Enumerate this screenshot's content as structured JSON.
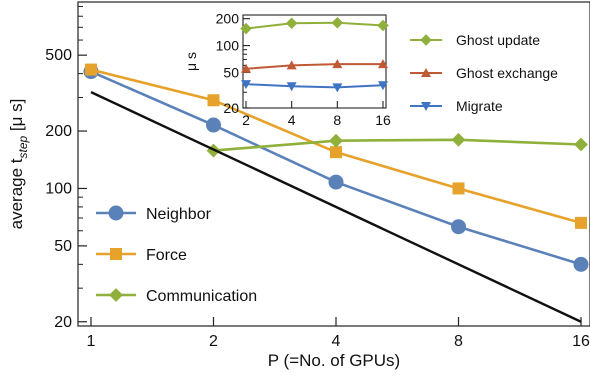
{
  "chart_data": [
    {
      "type": "line",
      "scale": {
        "x": "log2",
        "y": "log"
      },
      "xlim": [
        1,
        16
      ],
      "ylim": [
        19,
        950
      ],
      "xticks": [
        1,
        2,
        4,
        8,
        16
      ],
      "yticks": [
        20,
        50,
        100,
        200,
        500
      ],
      "xlabel": "P (=No. of GPUs)",
      "ylabel": {
        "main": "average t",
        "sub": "step",
        "unit": " [μ s]"
      },
      "grid": false,
      "legend_position": "bottom-left",
      "series": [
        {
          "name": "Neighbor",
          "color": "#5b82b8",
          "marker": "circle",
          "x": [
            1,
            2,
            4,
            8,
            16
          ],
          "y": [
            410,
            215,
            108,
            63,
            40
          ]
        },
        {
          "name": "Force",
          "color": "#e6a22a",
          "marker": "square",
          "x": [
            1,
            2,
            4,
            8,
            16
          ],
          "y": [
            420,
            290,
            155,
            100,
            66
          ]
        },
        {
          "name": "Communication",
          "color": "#8fb03a",
          "marker": "diamond",
          "x": [
            2,
            4,
            8,
            16
          ],
          "y": [
            158,
            178,
            180,
            170
          ]
        },
        {
          "name": "",
          "color": "#111111",
          "marker": "none",
          "x": [
            1,
            16
          ],
          "y": [
            320,
            20
          ]
        }
      ]
    },
    {
      "type": "line",
      "scale": {
        "x": "log2",
        "y": "log"
      },
      "xlim": [
        2,
        16
      ],
      "ylim": [
        20,
        220
      ],
      "xticks": [
        2,
        4,
        8,
        16
      ],
      "yticks": [
        20,
        50,
        100,
        200
      ],
      "ylabel": "μ s",
      "grid": false,
      "legend_position": "right",
      "series": [
        {
          "name": "Ghost update",
          "color": "#8fb03a",
          "marker": "diamond",
          "x": [
            2,
            4,
            8,
            16
          ],
          "y": [
            155,
            178,
            180,
            168
          ]
        },
        {
          "name": "Ghost exchange",
          "color": "#c05a35",
          "marker": "triangle-up",
          "x": [
            2,
            4,
            8,
            16
          ],
          "y": [
            55,
            60,
            62,
            62
          ]
        },
        {
          "name": "Migrate",
          "color": "#3f74c4",
          "marker": "triangle-down",
          "x": [
            2,
            4,
            8,
            16
          ],
          "y": [
            37,
            35,
            34,
            36
          ]
        }
      ]
    }
  ]
}
